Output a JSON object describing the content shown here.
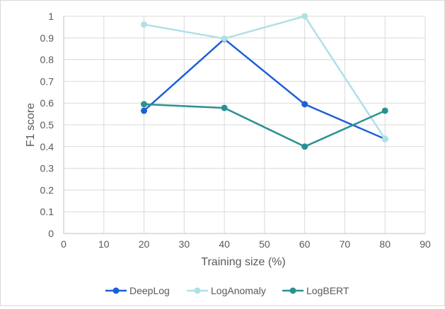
{
  "chart_data": {
    "type": "line",
    "title": "",
    "xlabel": "Training size (%)",
    "ylabel": "F1 score",
    "xlim": [
      0,
      90
    ],
    "ylim": [
      0,
      1
    ],
    "x_ticks": [
      0,
      10,
      20,
      30,
      40,
      50,
      60,
      70,
      80,
      90
    ],
    "y_ticks": [
      0,
      0.1,
      0.2,
      0.3,
      0.4,
      0.5,
      0.6,
      0.7,
      0.8,
      0.9,
      1
    ],
    "x_tick_labels": [
      "0",
      "10",
      "20",
      "30",
      "40",
      "50",
      "60",
      "70",
      "80",
      "90"
    ],
    "y_tick_labels": [
      "0",
      "0.1",
      "0.2",
      "0.3",
      "0.4",
      "0.5",
      "0.6",
      "0.7",
      "0.8",
      "0.9",
      "1"
    ],
    "grid": true,
    "legend_position": "bottom",
    "x": [
      20,
      40,
      60,
      80
    ],
    "series": [
      {
        "name": "DeepLog",
        "color": "#1f5fd6",
        "values": [
          0.565,
          0.895,
          0.595,
          0.435
        ]
      },
      {
        "name": "LogAnomaly",
        "color": "#afe0e6",
        "values": [
          0.962,
          0.897,
          1.0,
          0.435
        ]
      },
      {
        "name": "LogBERT",
        "color": "#2a9191",
        "values": [
          0.595,
          0.578,
          0.4,
          0.565
        ]
      }
    ]
  }
}
